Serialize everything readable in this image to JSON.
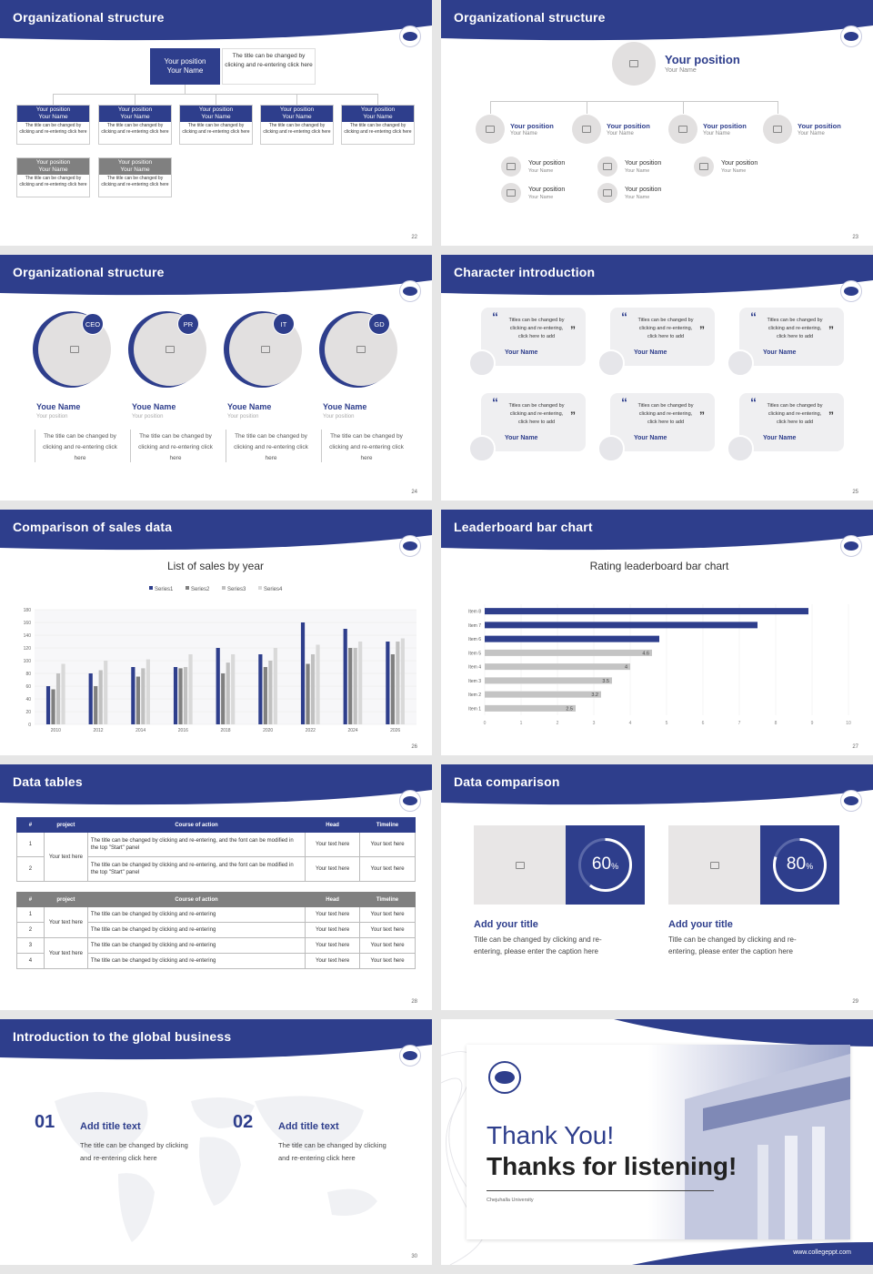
{
  "org": {
    "title": "Organizational structure",
    "top": {
      "position": "Your position",
      "name": "Your Name",
      "note": "The title can be changed by clicking and re-entering click here"
    },
    "position": "Your position",
    "name": "Your Name",
    "desc": "The title can be changed by clicking and re-entering click here",
    "page": "22",
    "page23": "23"
  },
  "org3": {
    "title": "Organizational structure",
    "page": "24",
    "badges": [
      "CEO",
      "PR",
      "IT",
      "GD"
    ],
    "name": "Youe Name",
    "position": "Your position",
    "desc": "The title can be changed by clicking and re-entering click here"
  },
  "chars": {
    "title": "Character introduction",
    "page": "25",
    "quote": "Titles can be changed by clicking and re-entering, click here to add",
    "name": "Your Name"
  },
  "sales": {
    "title": "Comparison of sales data",
    "page": "26"
  },
  "chart_data": [
    {
      "type": "bar",
      "title": "List of sales by year",
      "categories": [
        "2010",
        "2012",
        "2014",
        "2016",
        "2018",
        "2020",
        "2022",
        "2024",
        "2026"
      ],
      "series": [
        {
          "name": "Series1",
          "values": [
            60,
            80,
            90,
            90,
            120,
            110,
            160,
            150,
            130
          ]
        },
        {
          "name": "Series2",
          "values": [
            55,
            60,
            75,
            88,
            80,
            90,
            95,
            120,
            110
          ]
        },
        {
          "name": "Series3",
          "values": [
            80,
            85,
            88,
            90,
            97,
            100,
            110,
            120,
            130
          ]
        },
        {
          "name": "Series4",
          "values": [
            95,
            100,
            102,
            110,
            110,
            120,
            125,
            130,
            135
          ]
        }
      ],
      "ylim": [
        0,
        180
      ],
      "yticks": [
        0,
        20,
        40,
        60,
        80,
        100,
        120,
        140,
        160,
        180
      ],
      "colors": [
        "#2e3e8c",
        "#808080",
        "#c0c0c0",
        "#d9d9d9"
      ]
    },
    {
      "type": "bar",
      "orientation": "horizontal",
      "title": "Rating leaderboard bar chart",
      "categories": [
        "Item 1",
        "Item 2",
        "Item 3",
        "Item 4",
        "Item 5",
        "Item 6",
        "Item 7",
        "Item 8"
      ],
      "values": [
        2.5,
        3.2,
        3.5,
        4,
        4.6,
        4.8,
        7.5,
        8.9
      ],
      "labels": [
        "2.5",
        "3.2",
        "3.5",
        "4",
        "4.6",
        "",
        "",
        ""
      ],
      "xlim": [
        0,
        10
      ],
      "xticks": [
        0,
        1,
        2,
        3,
        4,
        5,
        6,
        7,
        8,
        9,
        10
      ]
    }
  ],
  "leader": {
    "title": "Leaderboard bar chart",
    "page": "27"
  },
  "tables": {
    "title": "Data tables",
    "page": "28",
    "head": [
      "#",
      "project",
      "Course of action",
      "Head",
      "Timeline"
    ],
    "t1": [
      {
        "n": "1",
        "c": "The title can be changed by clicking and re-entering, and the font can be modified in the top \"Start\" panel"
      },
      {
        "n": "2",
        "c": "The title can be changed by clicking and re-entering, and the font can be modified in the top \"Start\" panel"
      }
    ],
    "proj": "Your text here",
    "cell": "Your text here",
    "t2c": "The title can be changed by clicking and re-entering",
    "t2n": [
      "1",
      "2",
      "3",
      "4"
    ]
  },
  "comp": {
    "title": "Data comparison",
    "page": "29",
    "items": [
      {
        "pct": "60",
        "t": "Add your title",
        "d": "Title can be changed by clicking and re-entering, please enter the caption here"
      },
      {
        "pct": "80",
        "t": "Add your title",
        "d": "Title can be changed by clicking and re-entering, please enter the caption here"
      }
    ],
    "unit": "%"
  },
  "global": {
    "title": "Introduction to the global business",
    "page": "30",
    "items": [
      {
        "n": "01",
        "t": "Add title text",
        "d1": "The title can be changed by clicking",
        "d2": "and re-entering click here"
      },
      {
        "n": "02",
        "t": "Add title text",
        "d1": "The title can be changed by clicking",
        "d2": "and re-entering click here"
      }
    ]
  },
  "end": {
    "l1": "Thank You!",
    "l2": "Thanks for listening!",
    "uni": "Chejuhalla University",
    "url": "www.collegeppt.com"
  }
}
